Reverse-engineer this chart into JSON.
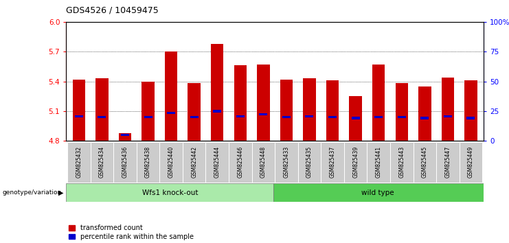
{
  "title": "GDS4526 / 10459475",
  "samples": [
    "GSM825432",
    "GSM825434",
    "GSM825436",
    "GSM825438",
    "GSM825440",
    "GSM825442",
    "GSM825444",
    "GSM825446",
    "GSM825448",
    "GSM825433",
    "GSM825435",
    "GSM825437",
    "GSM825439",
    "GSM825441",
    "GSM825443",
    "GSM825445",
    "GSM825447",
    "GSM825449"
  ],
  "red_values": [
    5.42,
    5.43,
    4.88,
    5.4,
    5.7,
    5.38,
    5.78,
    5.56,
    5.57,
    5.42,
    5.43,
    5.41,
    5.25,
    5.57,
    5.38,
    5.35,
    5.44,
    5.41
  ],
  "blue_values": [
    5.05,
    5.04,
    4.86,
    5.04,
    5.08,
    5.04,
    5.1,
    5.05,
    5.07,
    5.04,
    5.05,
    5.04,
    5.03,
    5.04,
    5.04,
    5.03,
    5.05,
    5.03
  ],
  "ymin": 4.8,
  "ymax": 6.0,
  "yticks_left": [
    4.8,
    5.1,
    5.4,
    5.7,
    6.0
  ],
  "yticks_right_vals": [
    0,
    25,
    50,
    75,
    100
  ],
  "yticks_right_labels": [
    "0",
    "25",
    "50",
    "75",
    "100%"
  ],
  "group1_label": "Wfs1 knock-out",
  "group2_label": "wild type",
  "group1_count": 9,
  "group2_count": 9,
  "legend_red": "transformed count",
  "legend_blue": "percentile rank within the sample",
  "genotype_label": "genotype/variation",
  "bar_color": "#cc0000",
  "blue_color": "#0000cc",
  "group1_bg": "#aaeaaa",
  "group2_bg": "#55cc55",
  "xlabel_bg": "#cccccc",
  "bar_width": 0.55
}
